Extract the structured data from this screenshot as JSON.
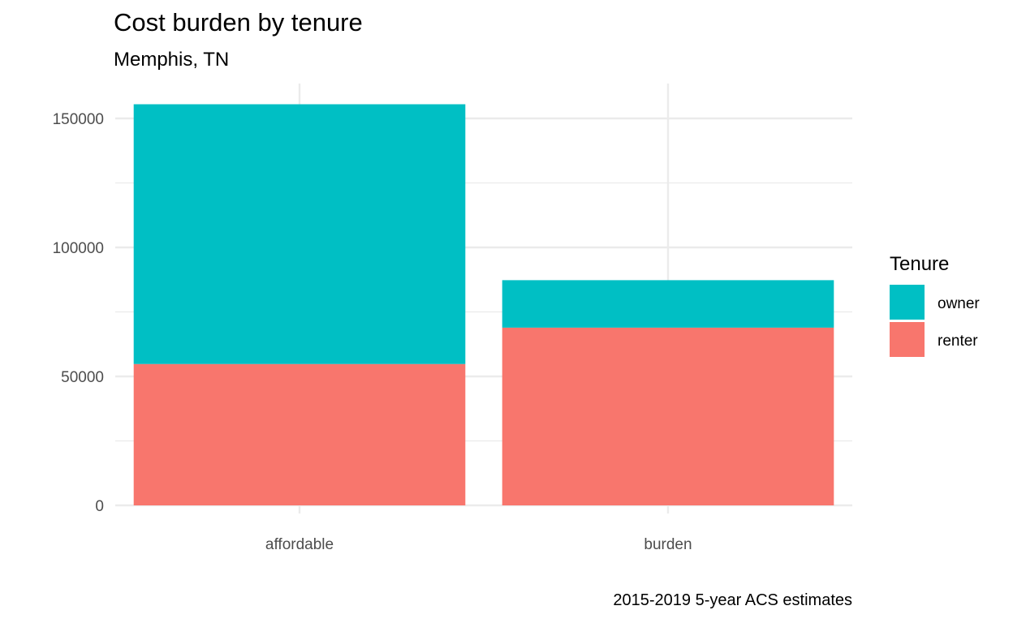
{
  "chart_data": {
    "type": "bar",
    "stacked": true,
    "title": "Cost burden by tenure",
    "subtitle": "Memphis, TN",
    "caption": "2015-2019 5-year ACS estimates",
    "xlabel": "",
    "ylabel": "",
    "categories": [
      "affordable",
      "burden"
    ],
    "series": [
      {
        "name": "renter",
        "values": [
          54800,
          68900
        ],
        "color": "#F8766D"
      },
      {
        "name": "owner",
        "values": [
          100700,
          18400
        ],
        "color": "#00BFC4"
      }
    ],
    "ylim": [
      0,
      160000
    ],
    "yticks": [
      0,
      50000,
      100000,
      150000
    ],
    "ytick_labels": [
      "0",
      "50000",
      "100000",
      "150000"
    ],
    "grid": true,
    "legend": {
      "title": "Tenure",
      "placement": "right",
      "items": [
        {
          "label": "owner",
          "color": "#00BFC4"
        },
        {
          "label": "renter",
          "color": "#F8766D"
        }
      ]
    }
  }
}
